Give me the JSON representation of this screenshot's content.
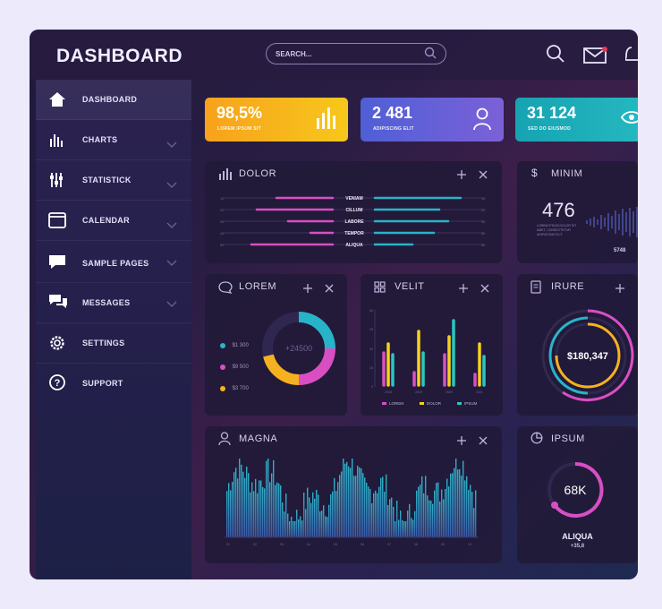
{
  "app": {
    "title": "DASHBOARD"
  },
  "search": {
    "placeholder": "SEARCH..."
  },
  "topbar": {
    "icons": [
      "search-icon",
      "mail-icon",
      "bell-icon"
    ]
  },
  "sidebar": {
    "items": [
      {
        "label": "Dashboard",
        "icon": "home-icon",
        "active": true
      },
      {
        "label": "CHARTS",
        "icon": "bar-chart-icon"
      },
      {
        "label": "STATISTICK",
        "icon": "sliders-icon"
      },
      {
        "label": "CALENDAR",
        "icon": "calendar-icon"
      },
      {
        "label": "SAMPLE PAGES",
        "icon": "comment-icon"
      },
      {
        "label": "MESSAGES",
        "icon": "messages-icon"
      },
      {
        "label": "SETTINGS",
        "icon": "gear-icon"
      },
      {
        "label": "SUPPORT",
        "icon": "help-icon"
      }
    ]
  },
  "kpis": [
    {
      "value": "98,5%",
      "sub": "LOREM IPSUM SIT",
      "icon": "bar-chart-icon",
      "color": "#f5b21e"
    },
    {
      "value": "2 481",
      "sub": "ADIPISCING ELIT",
      "icon": "user-icon",
      "color": "#5a63d8"
    },
    {
      "value": "31 124",
      "sub": "SED DO EIUSMOD",
      "icon": "eye-icon",
      "color": "#1fa8b7"
    }
  ],
  "cards": {
    "dolor": {
      "title": "DOLOR",
      "rows": [
        "VENIAM",
        "CILLUM",
        "LABORE",
        "TEMPOR",
        "ALIQUA"
      ]
    },
    "minim": {
      "title": "MINIM",
      "value": "476",
      "caption": "LOREM IPSUM DOLOR SIT AMET, CONSECTETUR ADIPISCING ELIT",
      "footer": "5748"
    },
    "lorem": {
      "title": "LOREM",
      "center": "+24500",
      "legend": [
        {
          "label": "$1 300",
          "color": "#28b4c8"
        },
        {
          "label": "$9 500",
          "color": "#d94fc3"
        },
        {
          "label": "$3 700",
          "color": "#f5b21e"
        }
      ]
    },
    "velit": {
      "title": "VELIT",
      "legend": [
        {
          "label": "LOREM",
          "color": "#d94fc3"
        },
        {
          "label": "DOLOR",
          "color": "#f5d11e"
        },
        {
          "label": "IPSUM",
          "color": "#2bc7c0"
        }
      ],
      "years": [
        "2018",
        "2019",
        "2020",
        "2021"
      ]
    },
    "irure": {
      "title": "IRURE",
      "value": "$180,347"
    },
    "magna": {
      "title": "MAGNA"
    },
    "ipsum": {
      "title": "IPSUM",
      "value": "68K",
      "label": "ALIQUA",
      "sub": "+35,8"
    }
  },
  "colors": {
    "yellow": "#f5b21e",
    "magenta": "#d94fc3",
    "cyan": "#28b4c8",
    "blue": "#5a63d8"
  }
}
